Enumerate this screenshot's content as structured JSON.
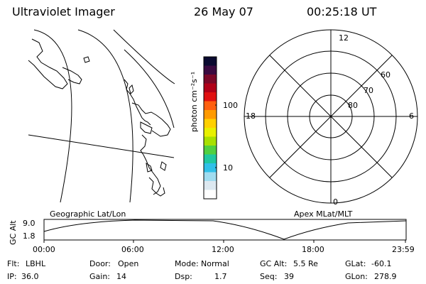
{
  "header": {
    "title": "Ultraviolet Imager",
    "date": "26 May 07",
    "time": "00:25:18 UT"
  },
  "colorbar": {
    "unit_label": "photon cm⁻²s⁻¹",
    "tick_labels": [
      "100",
      "10"
    ],
    "colors": [
      "#0a0a30",
      "#3a0a40",
      "#7a0828",
      "#b00018",
      "#e01010",
      "#ff6010",
      "#ff9a00",
      "#ffd000",
      "#e8f000",
      "#a8e000",
      "#50d040",
      "#20c8a0",
      "#30c0e8",
      "#a0dcf0",
      "#dce8f0",
      "#ffffff"
    ]
  },
  "map_labels": {
    "left": "Geographic Lat/Lon",
    "right": "Apex MLat/MLT"
  },
  "polar": {
    "mlt_labels": {
      "top": "12",
      "left": "18",
      "right": "6",
      "bottom": "0"
    },
    "lat_labels": [
      "60",
      "70",
      "80"
    ]
  },
  "timeline": {
    "ylabel": "GC Alt",
    "ytick_top": "9.0",
    "ytick_bottom": "1.8",
    "xticks": [
      "00:00",
      "06:00",
      "12:00",
      "18:00",
      "23:59"
    ]
  },
  "info": {
    "row1": [
      {
        "label": "Flt:",
        "value": "LBHL"
      },
      {
        "label": "Door:",
        "value": "Open"
      },
      {
        "label": "Mode:",
        "value": "Normal"
      },
      {
        "label": "GC Alt:",
        "value": "5.5 Re"
      },
      {
        "label": "GLat:",
        "value": "-60.1"
      }
    ],
    "row2": [
      {
        "label": "IP:",
        "value": "36.0"
      },
      {
        "label": "Gain:",
        "value": "14"
      },
      {
        "label": "Dsp:",
        "value": "1.7"
      },
      {
        "label": "Seq:",
        "value": "39"
      },
      {
        "label": "GLon:",
        "value": "278.9"
      }
    ]
  }
}
